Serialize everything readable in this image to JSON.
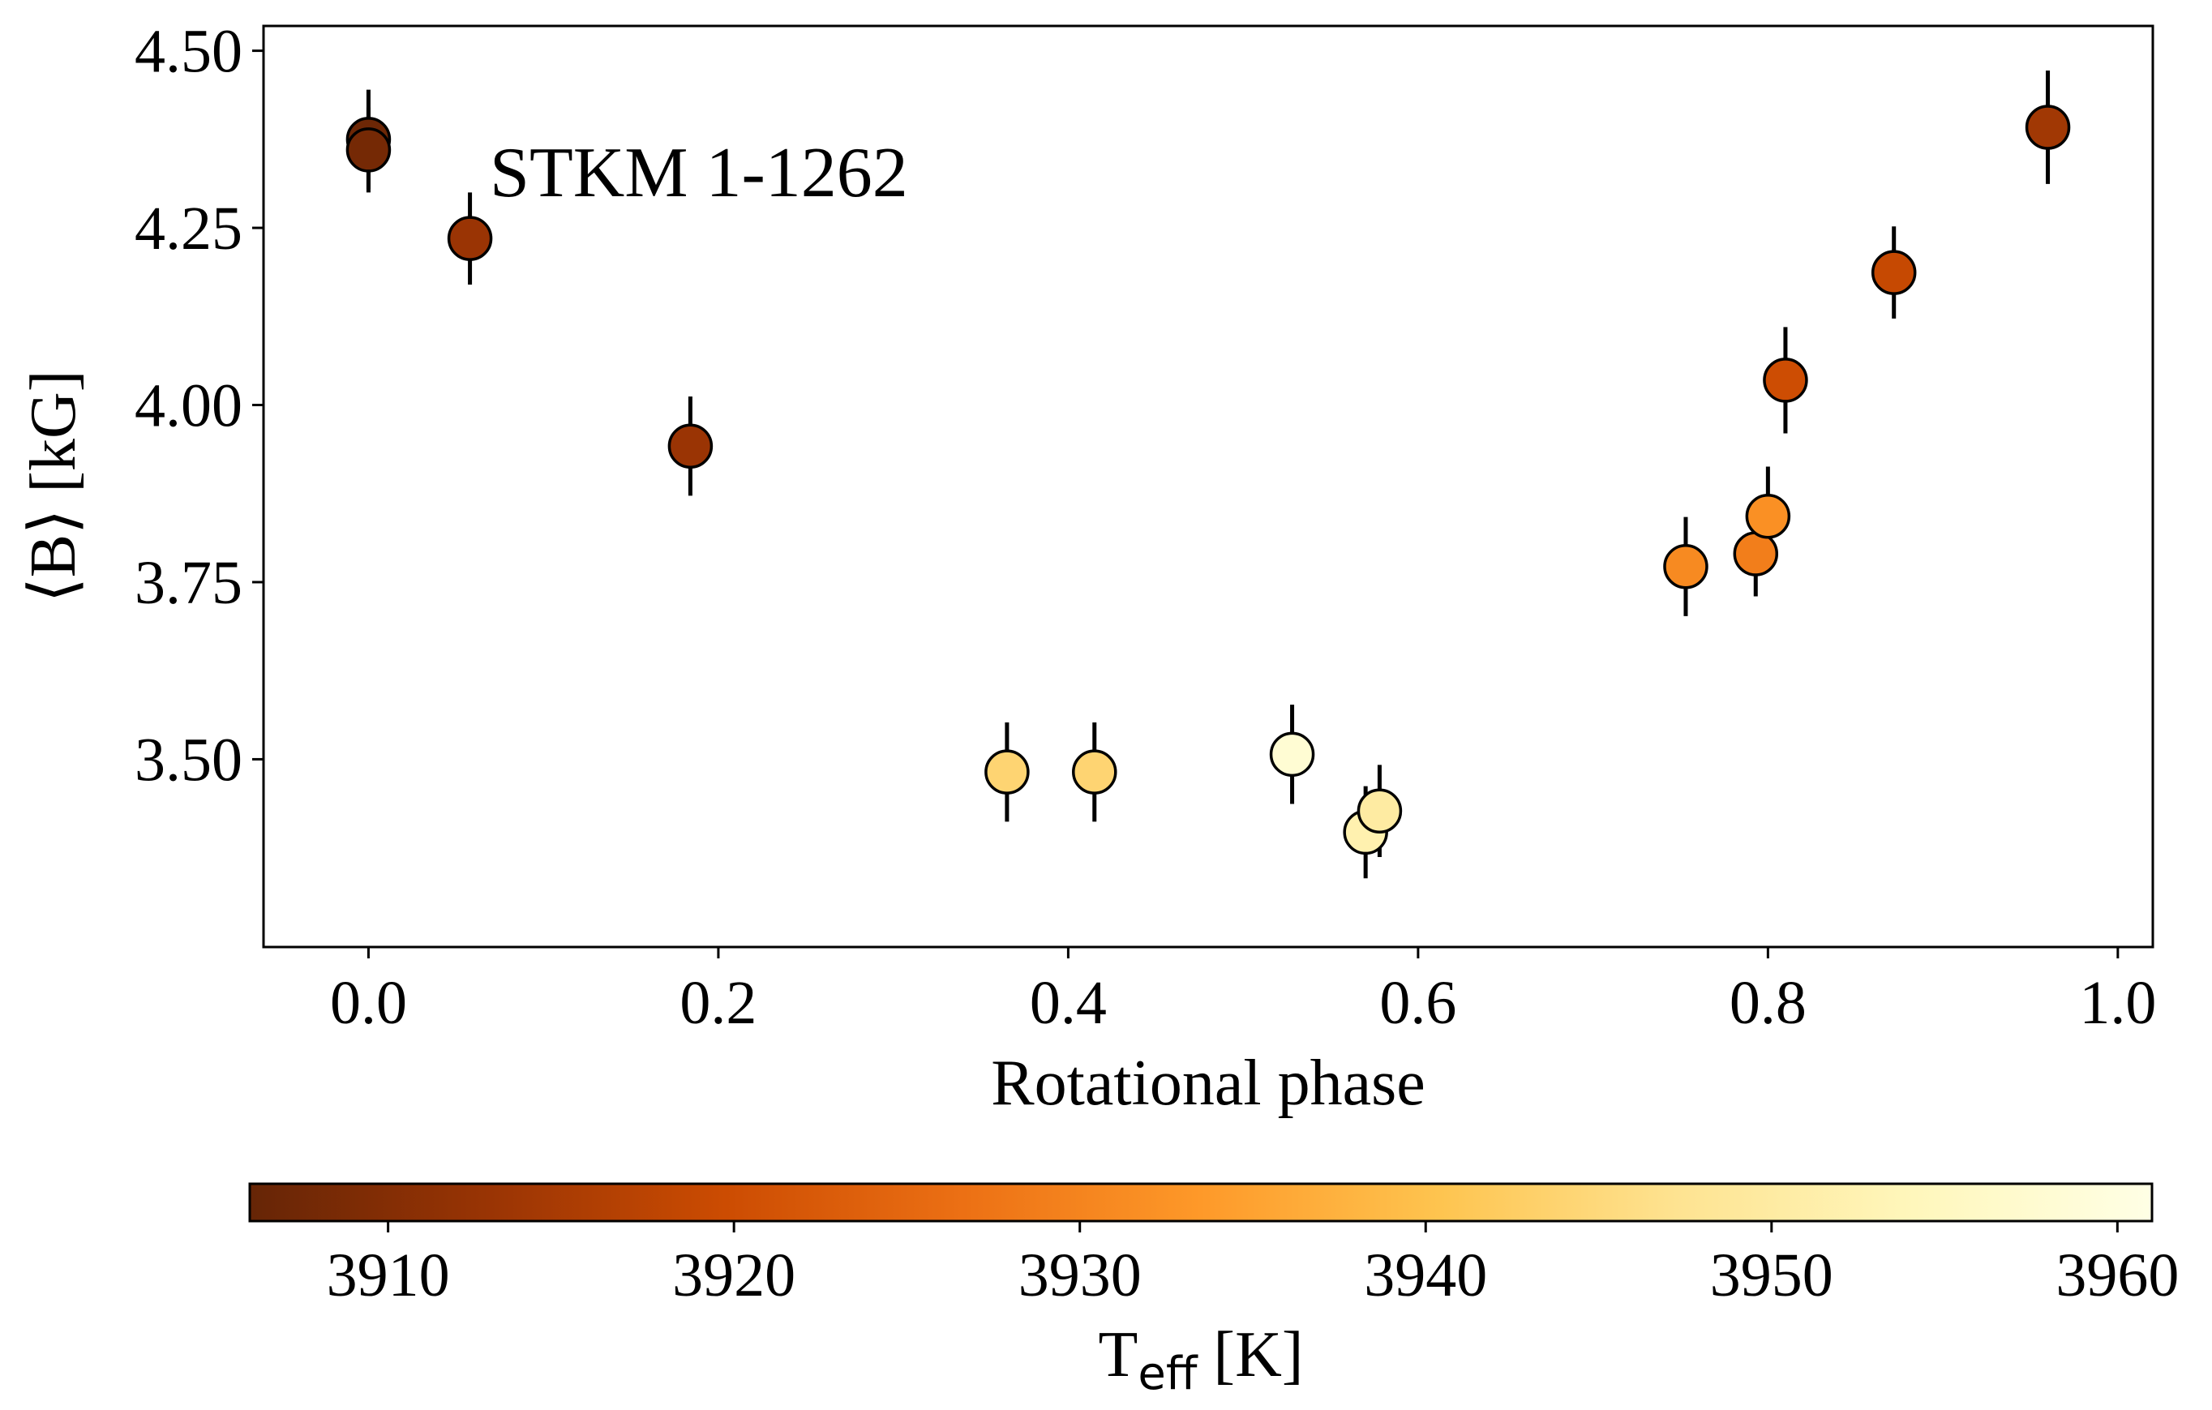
{
  "chart_data": {
    "type": "scatter",
    "annotation": "STKM 1-1262",
    "xlabel": "Rotational phase",
    "ylabel": "⟨B⟩ [kG]",
    "xlim": [
      -0.06,
      1.02
    ],
    "ylim": [
      3.235,
      4.535
    ],
    "x_ticks": [
      0.0,
      0.2,
      0.4,
      0.6,
      0.8,
      1.0
    ],
    "x_tick_labels": [
      "0.0",
      "0.2",
      "0.4",
      "0.6",
      "0.8",
      "1.0"
    ],
    "y_ticks": [
      3.5,
      3.75,
      4.0,
      4.25,
      4.5
    ],
    "y_tick_labels": [
      "3.50",
      "3.75",
      "4.00",
      "4.25",
      "4.50"
    ],
    "grid": false,
    "points": [
      {
        "phase": 0.0,
        "B": 4.375,
        "err": 0.07,
        "teff": 3907
      },
      {
        "phase": 0.0,
        "B": 4.36,
        "err": 0.06,
        "teff": 3908
      },
      {
        "phase": 0.058,
        "B": 4.235,
        "err": 0.065,
        "teff": 3913
      },
      {
        "phase": 0.184,
        "B": 3.942,
        "err": 0.07,
        "teff": 3913
      },
      {
        "phase": 0.365,
        "B": 3.482,
        "err": 0.07,
        "teff": 3944
      },
      {
        "phase": 0.415,
        "B": 3.482,
        "err": 0.07,
        "teff": 3944
      },
      {
        "phase": 0.528,
        "B": 3.507,
        "err": 0.07,
        "teff": 3958
      },
      {
        "phase": 0.57,
        "B": 3.397,
        "err": 0.065,
        "teff": 3952
      },
      {
        "phase": 0.578,
        "B": 3.427,
        "err": 0.065,
        "teff": 3950
      },
      {
        "phase": 0.753,
        "B": 3.772,
        "err": 0.07,
        "teff": 3931
      },
      {
        "phase": 0.793,
        "B": 3.79,
        "err": 0.06,
        "teff": 3929
      },
      {
        "phase": 0.8,
        "B": 3.843,
        "err": 0.07,
        "teff": 3932
      },
      {
        "phase": 0.81,
        "B": 4.035,
        "err": 0.075,
        "teff": 3920
      },
      {
        "phase": 0.872,
        "B": 4.187,
        "err": 0.065,
        "teff": 3919
      },
      {
        "phase": 0.96,
        "B": 4.392,
        "err": 0.08,
        "teff": 3914
      }
    ],
    "colorbar": {
      "label": "T",
      "label_sub": "eff",
      "label_suffix": " [K]",
      "range": [
        3906,
        3961
      ],
      "ticks": [
        3910,
        3920,
        3930,
        3940,
        3950,
        3960
      ],
      "tick_labels": [
        "3910",
        "3920",
        "3930",
        "3940",
        "3950",
        "3960"
      ],
      "colormap": "YlOrBr_r",
      "stops": [
        "#662506",
        "#993404",
        "#cc4c02",
        "#ec7014",
        "#fe9929",
        "#fec44f",
        "#fee391",
        "#fff7bc",
        "#ffffe5"
      ]
    }
  }
}
